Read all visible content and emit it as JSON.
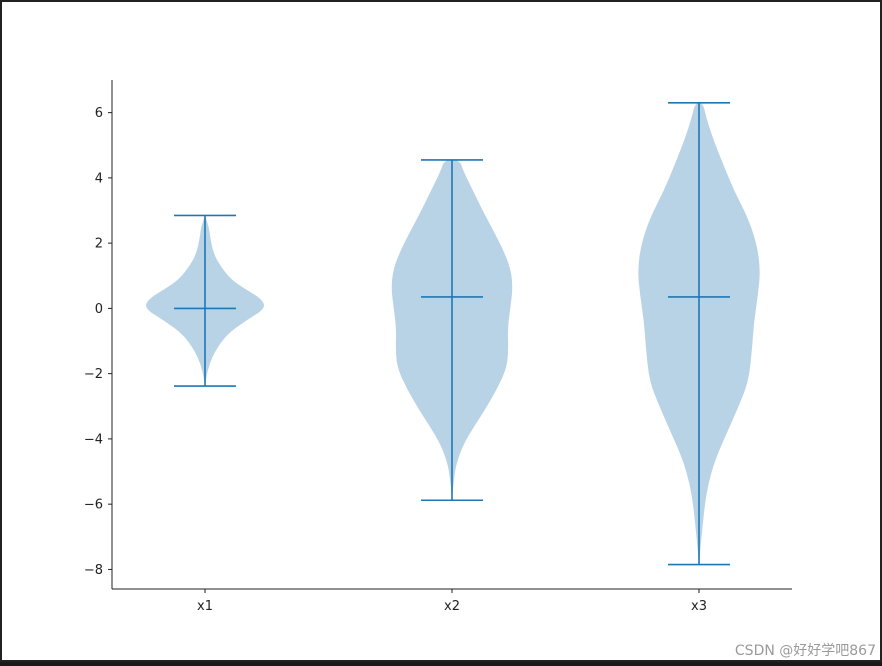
{
  "chart_data": {
    "type": "violin",
    "categories": [
      "x1",
      "x2",
      "x3"
    ],
    "ylim": [
      -8.6,
      7.0
    ],
    "yticks": [
      -8,
      -6,
      -4,
      -2,
      0,
      2,
      4,
      6
    ],
    "ytick_labels": [
      "−8",
      "−6",
      "−4",
      "−2",
      "0",
      "2",
      "4",
      "6"
    ],
    "series": [
      {
        "category": "x1",
        "min": -2.38,
        "max": 2.85,
        "mean": 0.0,
        "density": [
          [
            -2.38,
            0.0
          ],
          [
            -2.1,
            0.02
          ],
          [
            -1.7,
            0.07
          ],
          [
            -1.3,
            0.16
          ],
          [
            -0.8,
            0.34
          ],
          [
            -0.4,
            0.62
          ],
          [
            0.0,
            0.95
          ],
          [
            0.3,
            0.88
          ],
          [
            0.6,
            0.62
          ],
          [
            0.9,
            0.4
          ],
          [
            1.3,
            0.24
          ],
          [
            1.7,
            0.13
          ],
          [
            2.2,
            0.08
          ],
          [
            2.5,
            0.06
          ],
          [
            2.85,
            0.0
          ]
        ]
      },
      {
        "category": "x2",
        "min": -5.88,
        "max": 4.55,
        "mean": 0.35,
        "density": [
          [
            -5.88,
            0.0
          ],
          [
            -5.4,
            0.02
          ],
          [
            -4.8,
            0.06
          ],
          [
            -4.2,
            0.17
          ],
          [
            -3.6,
            0.35
          ],
          [
            -3.0,
            0.55
          ],
          [
            -2.4,
            0.72
          ],
          [
            -1.8,
            0.86
          ],
          [
            -1.2,
            0.88
          ],
          [
            -0.6,
            0.87
          ],
          [
            0.0,
            0.91
          ],
          [
            0.6,
            0.95
          ],
          [
            1.2,
            0.92
          ],
          [
            1.8,
            0.8
          ],
          [
            2.4,
            0.64
          ],
          [
            3.0,
            0.48
          ],
          [
            3.6,
            0.33
          ],
          [
            4.2,
            0.18
          ],
          [
            4.55,
            0.12
          ]
        ]
      },
      {
        "category": "x3",
        "min": -7.85,
        "max": 6.3,
        "mean": 0.35,
        "density": [
          [
            -7.85,
            0.0
          ],
          [
            -7.4,
            0.02
          ],
          [
            -6.8,
            0.05
          ],
          [
            -6.2,
            0.08
          ],
          [
            -5.4,
            0.14
          ],
          [
            -4.6,
            0.26
          ],
          [
            -3.8,
            0.44
          ],
          [
            -3.0,
            0.62
          ],
          [
            -2.2,
            0.78
          ],
          [
            -1.2,
            0.83
          ],
          [
            -0.4,
            0.86
          ],
          [
            0.4,
            0.92
          ],
          [
            1.2,
            0.96
          ],
          [
            2.0,
            0.9
          ],
          [
            2.8,
            0.76
          ],
          [
            3.6,
            0.55
          ],
          [
            4.4,
            0.38
          ],
          [
            5.2,
            0.22
          ],
          [
            5.8,
            0.12
          ],
          [
            6.3,
            0.06
          ]
        ]
      }
    ],
    "colors": {
      "body": "#b9d3e6",
      "line": "#1f77b4",
      "axis": "#222222"
    }
  },
  "watermark": "CSDN @好好学吧867"
}
